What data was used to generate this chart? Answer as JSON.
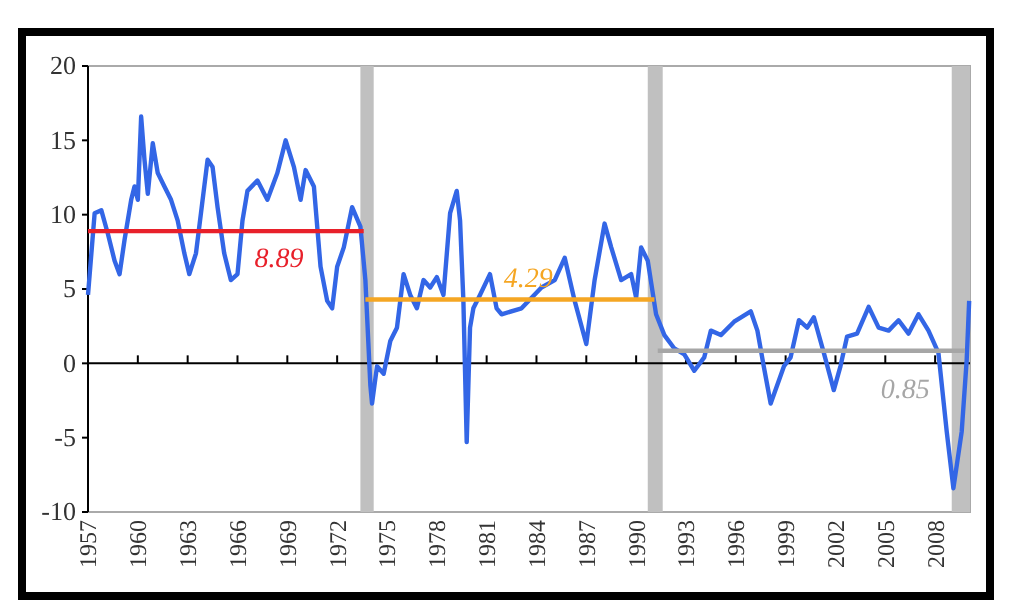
{
  "chart_data": {
    "type": "line",
    "xlim": [
      1957,
      2010.1
    ],
    "xticks": [
      1957,
      1960,
      1963,
      1966,
      1969,
      1972,
      1975,
      1978,
      1981,
      1984,
      1987,
      1990,
      1993,
      1996,
      1999,
      2002,
      2005,
      2008
    ],
    "ylim": [
      -10,
      20
    ],
    "yticks": [
      -10,
      -5,
      0,
      5,
      10,
      15,
      20
    ],
    "bands": [
      {
        "axis": "x",
        "from": 1973.4,
        "to": 1974.2,
        "color": "#c0c0c0"
      },
      {
        "axis": "x",
        "from": 1990.7,
        "to": 1991.6,
        "color": "#c0c0c0"
      },
      {
        "axis": "x",
        "from": 2009.0,
        "to": 2010.1,
        "color": "#c0c0c0"
      }
    ],
    "series": [
      {
        "color": "#3366e6",
        "x": [
          1957.0,
          1957.4,
          1957.8,
          1958.2,
          1958.6,
          1958.9,
          1959.2,
          1959.6,
          1959.8,
          1960.0,
          1960.2,
          1960.4,
          1960.6,
          1960.9,
          1961.2,
          1961.6,
          1962.0,
          1962.4,
          1962.8,
          1963.1,
          1963.5,
          1963.8,
          1964.2,
          1964.5,
          1964.8,
          1965.2,
          1965.6,
          1966.0,
          1966.3,
          1966.6,
          1967.2,
          1967.8,
          1968.4,
          1968.9,
          1969.4,
          1969.8,
          1970.1,
          1970.6,
          1971.0,
          1971.4,
          1971.7,
          1972.0,
          1972.4,
          1972.9,
          1973.4,
          1973.7,
          1974.0,
          1974.1,
          1974.4,
          1974.8,
          1975.2,
          1975.6,
          1976.0,
          1976.4,
          1976.8,
          1977.2,
          1977.6,
          1978.0,
          1978.4,
          1978.8,
          1979.2,
          1979.4,
          1979.6,
          1979.8,
          1980.0,
          1980.2,
          1980.6,
          1981.2,
          1981.6,
          1981.9,
          1983.1,
          1984.3,
          1985.1,
          1985.7,
          1986.3,
          1987.0,
          1987.5,
          1988.1,
          1988.5,
          1989.1,
          1989.7,
          1990.0,
          1990.3,
          1990.7,
          1991.2,
          1991.7,
          1992.3,
          1992.9,
          1993.5,
          1994.1,
          1994.5,
          1995.1,
          1995.9,
          1996.9,
          1997.3,
          1997.7,
          1998.1,
          1998.9,
          1999.3,
          1999.8,
          2000.3,
          2000.7,
          2001.3,
          2001.9,
          2002.3,
          2002.7,
          2003.3,
          2004.0,
          2004.6,
          2005.2,
          2005.8,
          2006.4,
          2007.0,
          2007.6,
          2008.2,
          2008.7,
          2009.1,
          2009.6,
          2009.9,
          2010.05
        ],
        "values": [
          4.6,
          10.1,
          10.3,
          8.7,
          6.9,
          6.0,
          8.3,
          11.0,
          11.9,
          11.0,
          16.6,
          13.7,
          11.4,
          14.8,
          12.8,
          11.9,
          11.0,
          9.6,
          7.4,
          6.0,
          7.4,
          10.1,
          13.7,
          13.2,
          10.5,
          7.4,
          5.6,
          6.0,
          9.6,
          11.6,
          12.3,
          11.0,
          12.8,
          15.0,
          13.2,
          11.0,
          13.0,
          11.9,
          6.5,
          4.2,
          3.7,
          6.5,
          7.8,
          10.5,
          9.2,
          5.6,
          -1.5,
          -2.7,
          -0.2,
          -0.7,
          1.5,
          2.4,
          6.0,
          4.6,
          3.7,
          5.6,
          5.1,
          5.8,
          4.6,
          10.1,
          11.6,
          9.6,
          4.2,
          -5.3,
          2.4,
          3.7,
          4.6,
          6.0,
          3.7,
          3.3,
          3.7,
          5.1,
          5.6,
          7.1,
          4.2,
          1.3,
          5.6,
          9.4,
          7.8,
          5.6,
          6.0,
          4.4,
          7.8,
          6.9,
          3.3,
          1.9,
          1.0,
          0.6,
          -0.5,
          0.4,
          2.2,
          1.9,
          2.8,
          3.5,
          2.2,
          -0.3,
          -2.7,
          -0.2,
          0.4,
          2.9,
          2.4,
          3.1,
          0.7,
          -1.8,
          -0.2,
          1.8,
          2.0,
          3.8,
          2.4,
          2.2,
          2.9,
          2.0,
          3.3,
          2.2,
          0.7,
          -4.6,
          -8.4,
          -4.6,
          0.2,
          4.2
        ]
      },
      {
        "color": "#e8202a",
        "x": [
          1957,
          1973.6
        ],
        "values": [
          8.89,
          8.89
        ]
      },
      {
        "color": "#f5a623",
        "x": [
          1973.7,
          1991.1
        ],
        "values": [
          4.29,
          4.29
        ]
      },
      {
        "color": "#a6a6a6",
        "x": [
          1991.3,
          2009.8
        ],
        "values": [
          0.85,
          0.85
        ]
      }
    ],
    "annotations": [
      {
        "text": "8.89",
        "x": 1968.5,
        "y": 8.89
      },
      {
        "text": "4.29",
        "x": 1983.5,
        "y": 4.29
      },
      {
        "text": "0.85",
        "x": 2006.2,
        "y": 0.85
      }
    ]
  }
}
